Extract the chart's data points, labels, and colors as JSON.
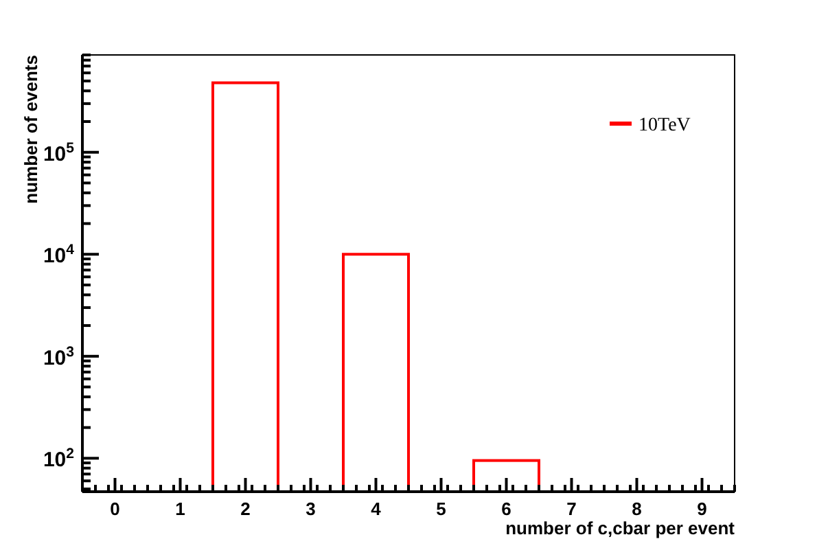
{
  "chart_data": {
    "type": "histogram",
    "xlabel": "number of c,cbar per event",
    "ylabel": "number of events",
    "bins": [
      -0.5,
      0.5,
      1.5,
      2.5,
      3.5,
      4.5,
      5.5,
      6.5,
      7.5,
      8.5,
      9.5
    ],
    "series": [
      {
        "name": "10TeV",
        "color": "#ff0000",
        "values": [
          null,
          null,
          480000,
          null,
          10000,
          null,
          95,
          null,
          null,
          null
        ]
      }
    ],
    "log": "y",
    "xlim": [
      -0.5,
      9.5
    ],
    "xticks": [
      0,
      1,
      2,
      3,
      4,
      5,
      6,
      7,
      8,
      9
    ],
    "ylim": [
      47,
      900000
    ],
    "yticks": [
      {
        "value": 100,
        "label": "10$^{2}$"
      },
      {
        "value": 1000,
        "label": "10$^{3}$"
      },
      {
        "value": 10000,
        "label": "10$^{4}$"
      },
      {
        "value": 100000,
        "label": "10$^{5}$"
      }
    ],
    "legend": "top right",
    "grid": false
  }
}
